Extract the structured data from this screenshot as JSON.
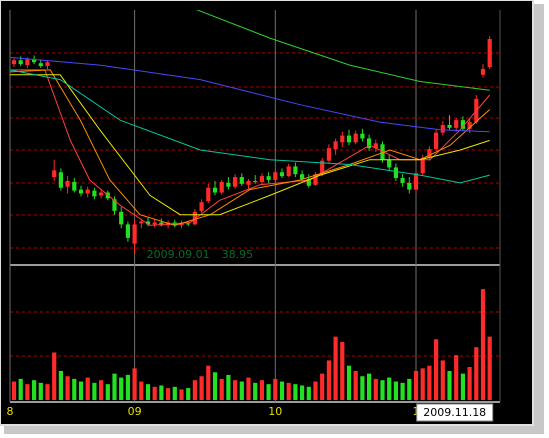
{
  "chart_data": {
    "type": "candlestick",
    "up_color": "#ff2a2a",
    "down_color": "#22e022",
    "ylim": [
      38,
      64
    ],
    "volume_ylim": [
      0,
      100
    ],
    "xticks": [
      {
        "value": -0.6,
        "label": "8"
      },
      {
        "value": 18,
        "label": "09"
      },
      {
        "value": 39,
        "label": "10"
      },
      {
        "value": 60,
        "label": "1"
      }
    ],
    "annotation": {
      "date": "2009.09.01",
      "value": 38.95,
      "index": 18
    },
    "cursor_label": {
      "label": "2009.11.18",
      "index": 71
    },
    "candles": [
      [
        58.6,
        59.2,
        58.3,
        59.0
      ],
      [
        59.0,
        59.4,
        58.4,
        58.6
      ],
      [
        58.5,
        59.3,
        58.2,
        59.1
      ],
      [
        59.1,
        59.5,
        58.6,
        58.8
      ],
      [
        58.7,
        59.1,
        58.2,
        58.4
      ],
      [
        58.4,
        59.0,
        58.1,
        58.8
      ],
      [
        46.9,
        48.7,
        46.5,
        47.6
      ],
      [
        47.4,
        47.8,
        45.5,
        45.8
      ],
      [
        45.9,
        47.0,
        45.2,
        46.5
      ],
      [
        46.4,
        46.8,
        45.3,
        45.5
      ],
      [
        45.6,
        46.0,
        44.9,
        45.2
      ],
      [
        45.2,
        45.9,
        44.8,
        45.6
      ],
      [
        45.5,
        45.8,
        44.6,
        44.9
      ],
      [
        45.0,
        45.6,
        44.7,
        45.3
      ],
      [
        45.3,
        45.5,
        44.5,
        44.7
      ],
      [
        44.6,
        44.9,
        43.0,
        43.4
      ],
      [
        43.3,
        43.8,
        41.6,
        42.0
      ],
      [
        42.0,
        42.3,
        40.2,
        40.6
      ],
      [
        40.0,
        42.5,
        38.95,
        42.0
      ],
      [
        42.1,
        42.6,
        41.6,
        42.3
      ],
      [
        42.3,
        42.7,
        41.8,
        42.0
      ],
      [
        42.0,
        42.5,
        41.7,
        42.2
      ],
      [
        42.2,
        42.6,
        41.8,
        41.9
      ],
      [
        41.9,
        42.4,
        41.6,
        42.2
      ],
      [
        42.2,
        42.5,
        41.7,
        41.9
      ],
      [
        41.9,
        42.4,
        41.6,
        42.1
      ],
      [
        42.1,
        42.3,
        41.8,
        42.0
      ],
      [
        42.0,
        43.6,
        41.9,
        43.3
      ],
      [
        43.4,
        44.6,
        43.2,
        44.3
      ],
      [
        44.4,
        46.2,
        44.2,
        45.8
      ],
      [
        45.8,
        46.5,
        45.0,
        45.3
      ],
      [
        45.3,
        46.6,
        45.1,
        46.4
      ],
      [
        46.3,
        46.9,
        45.6,
        45.9
      ],
      [
        45.9,
        47.2,
        45.7,
        46.9
      ],
      [
        46.9,
        47.3,
        46.0,
        46.2
      ],
      [
        46.1,
        46.7,
        45.7,
        46.5
      ],
      [
        46.5,
        47.1,
        46.2,
        46.4
      ],
      [
        46.4,
        47.3,
        46.1,
        47.0
      ],
      [
        47.0,
        47.4,
        46.3,
        46.6
      ],
      [
        46.6,
        47.7,
        46.4,
        47.4
      ],
      [
        47.4,
        47.8,
        46.8,
        47.0
      ],
      [
        47.0,
        48.3,
        46.9,
        48.0
      ],
      [
        48.0,
        48.4,
        46.9,
        47.2
      ],
      [
        47.2,
        47.6,
        46.4,
        46.7
      ],
      [
        46.7,
        47.2,
        45.8,
        46.0
      ],
      [
        46.1,
        47.4,
        46.0,
        47.2
      ],
      [
        47.2,
        48.9,
        47.0,
        48.6
      ],
      [
        48.6,
        50.3,
        48.4,
        49.9
      ],
      [
        49.8,
        50.9,
        49.2,
        50.6
      ],
      [
        50.5,
        51.6,
        50.0,
        51.2
      ],
      [
        51.2,
        51.8,
        50.2,
        50.5
      ],
      [
        50.5,
        51.7,
        50.3,
        51.4
      ],
      [
        51.4,
        51.9,
        50.6,
        50.9
      ],
      [
        50.9,
        51.3,
        49.6,
        49.9
      ],
      [
        49.9,
        50.8,
        49.5,
        50.4
      ],
      [
        50.3,
        50.6,
        48.4,
        48.7
      ],
      [
        48.7,
        49.2,
        47.6,
        47.9
      ],
      [
        47.9,
        48.3,
        46.5,
        46.8
      ],
      [
        46.8,
        47.2,
        45.9,
        46.3
      ],
      [
        46.3,
        46.9,
        45.2,
        45.6
      ],
      [
        45.6,
        47.6,
        45.3,
        47.3
      ],
      [
        47.3,
        49.2,
        47.1,
        48.9
      ],
      [
        48.9,
        50.1,
        48.6,
        49.8
      ],
      [
        49.8,
        51.8,
        49.6,
        51.5
      ],
      [
        51.5,
        52.7,
        51.2,
        52.3
      ],
      [
        52.3,
        53.3,
        51.8,
        52.0
      ],
      [
        52.0,
        53.0,
        51.6,
        52.8
      ],
      [
        52.8,
        53.2,
        51.7,
        51.9
      ],
      [
        51.9,
        53.0,
        51.5,
        52.6
      ],
      [
        52.6,
        55.4,
        52.4,
        55.0
      ],
      [
        57.5,
        58.6,
        57.2,
        58.1
      ],
      [
        58.3,
        61.5,
        58.1,
        61.2
      ]
    ],
    "volume": [
      14,
      16,
      12,
      15,
      13,
      12,
      36,
      22,
      18,
      16,
      14,
      17,
      13,
      15,
      12,
      20,
      17,
      19,
      24,
      14,
      12,
      10,
      11,
      9,
      10,
      8,
      9,
      15,
      18,
      26,
      21,
      16,
      19,
      15,
      14,
      17,
      13,
      15,
      12,
      16,
      14,
      13,
      12,
      11,
      10,
      14,
      20,
      30,
      48,
      44,
      26,
      22,
      18,
      20,
      16,
      15,
      17,
      14,
      13,
      16,
      22,
      24,
      26,
      46,
      30,
      22,
      34,
      20,
      25,
      40,
      84,
      48
    ],
    "lines": [
      {
        "color": "#ff4040",
        "x": [
          -0.6,
          4.6,
          8.4,
          11.3,
          15.8,
          20.3,
          26.3,
          30.7,
          36.7,
          44.2,
          49.4,
          53.1,
          57.6,
          62.1,
          66.6,
          71.0
        ],
        "values": [
          58.0,
          58.0,
          50.7,
          46.6,
          44.0,
          41.9,
          42.2,
          44.5,
          46.1,
          46.6,
          48.7,
          50.2,
          48.7,
          48.7,
          51.8,
          55.4
        ]
      },
      {
        "color": "#ff8c00",
        "x": [
          -0.6,
          5.4,
          9.9,
          14.3,
          18.8,
          24.0,
          29.3,
          35.2,
          42.7,
          50.1,
          56.1,
          60.6,
          65.1,
          71.0
        ],
        "values": [
          57.8,
          58.0,
          52.8,
          46.6,
          43.0,
          41.9,
          43.0,
          45.6,
          46.6,
          48.2,
          49.7,
          48.7,
          50.2,
          53.9
        ]
      },
      {
        "color": "#e8e800",
        "x": [
          -0.6,
          6.9,
          12.8,
          20.3,
          24.8,
          30.7,
          38.2,
          45.7,
          53.1,
          60.6,
          66.6,
          71.0
        ],
        "values": [
          57.5,
          57.5,
          51.8,
          45.0,
          43.0,
          43.0,
          45.0,
          47.1,
          48.7,
          48.7,
          49.7,
          50.7
        ]
      },
      {
        "color": "#00c8a0",
        "x": [
          -0.6,
          6.9,
          15.8,
          27.8,
          38.2,
          50.1,
          60.6,
          66.6,
          71.0
        ],
        "values": [
          58.0,
          57.0,
          52.8,
          49.7,
          48.7,
          48.2,
          47.1,
          46.3,
          47.1
        ]
      },
      {
        "color": "#4848ff",
        "x": [
          -0.6,
          12.8,
          27.8,
          42.7,
          54.6,
          63.6,
          71.0
        ],
        "values": [
          59.3,
          58.5,
          57.0,
          54.4,
          52.6,
          51.8,
          51.6
        ]
      },
      {
        "color": "#30d030",
        "x": [
          26.3,
          38.2,
          50.1,
          60.6,
          71.0
        ],
        "values": [
          64.5,
          61.3,
          58.5,
          56.8,
          55.9
        ]
      }
    ]
  }
}
